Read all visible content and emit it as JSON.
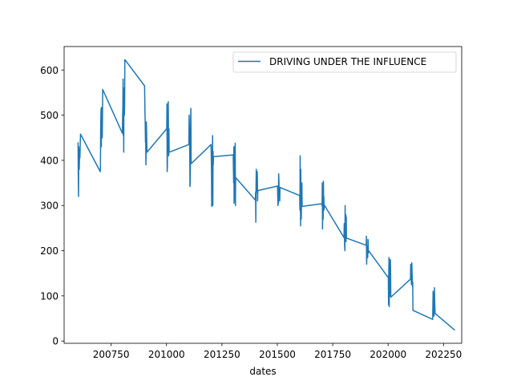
{
  "chart_data": {
    "type": "line",
    "title": "",
    "xlabel": "dates",
    "ylabel": "",
    "xlim": [
      200538,
      202332
    ],
    "ylim": [
      -5,
      652
    ],
    "x_ticks": [
      200750,
      201000,
      201250,
      201500,
      201750,
      202000,
      202250
    ],
    "y_ticks": [
      0,
      100,
      200,
      300,
      400,
      500,
      600
    ],
    "grid": false,
    "legend_position": "top-right",
    "series_color": "#1f77b4",
    "series": [
      {
        "name": "DRIVING UNDER THE INFLUENCE",
        "x": [
          200601,
          200602,
          200603,
          200604,
          200605,
          200606,
          200607,
          200608,
          200609,
          200610,
          200611,
          200612,
          200701,
          200702,
          200703,
          200704,
          200705,
          200706,
          200707,
          200708,
          200709,
          200710,
          200711,
          200712,
          200801,
          200802,
          200803,
          200804,
          200805,
          200806,
          200807,
          200808,
          200809,
          200810,
          200811,
          200812,
          200901,
          200902,
          200903,
          200904,
          200905,
          200906,
          200907,
          200908,
          200909,
          200910,
          200911,
          200912,
          201001,
          201002,
          201003,
          201004,
          201005,
          201006,
          201007,
          201008,
          201009,
          201010,
          201011,
          201012,
          201101,
          201102,
          201103,
          201104,
          201105,
          201106,
          201107,
          201108,
          201109,
          201110,
          201111,
          201112,
          201201,
          201202,
          201203,
          201204,
          201205,
          201206,
          201207,
          201208,
          201209,
          201210,
          201211,
          201212,
          201301,
          201302,
          201303,
          201304,
          201305,
          201306,
          201307,
          201308,
          201309,
          201310,
          201311,
          201312,
          201401,
          201402,
          201403,
          201404,
          201405,
          201406,
          201407,
          201408,
          201409,
          201410,
          201411,
          201412,
          201501,
          201502,
          201503,
          201504,
          201505,
          201506,
          201507,
          201508,
          201509,
          201510,
          201511,
          201512,
          201601,
          201602,
          201603,
          201604,
          201605,
          201606,
          201607,
          201608,
          201609,
          201610,
          201611,
          201612,
          201701,
          201702,
          201703,
          201704,
          201705,
          201706,
          201707,
          201708,
          201709,
          201710,
          201711,
          201712,
          201801,
          201802,
          201803,
          201804,
          201805,
          201806,
          201807,
          201808,
          201809,
          201810,
          201811,
          201812,
          201901,
          201902,
          201903,
          201904,
          201905,
          201906,
          201907,
          201908,
          201909,
          201910,
          201911,
          201912,
          202001,
          202002,
          202003,
          202004,
          202005,
          202006,
          202007,
          202008,
          202009,
          202010,
          202011,
          202012,
          202101,
          202102,
          202103,
          202104,
          202105,
          202106,
          202107,
          202108,
          202109,
          202110,
          202111,
          202112,
          202201,
          202202,
          202203,
          202204,
          202205,
          202206,
          202207,
          202208,
          202209,
          202210,
          202211,
          202212,
          202301
        ],
        "y": [
          440,
          360,
          320,
          430,
          410,
          380,
          400,
          425,
          405,
          420,
          440,
          458,
          375,
          390,
          470,
          500,
          515,
          430,
          517,
          480,
          460,
          450,
          490,
          557,
          460,
          500,
          520,
          580,
          455,
          540,
          418,
          560,
          530,
          500,
          520,
          623,
          565,
          535,
          500,
          480,
          440,
          470,
          390,
          420,
          485,
          465,
          440,
          418,
          470,
          525,
          375,
          390,
          500,
          505,
          465,
          530,
          440,
          410,
          470,
          418,
          435,
          500,
          480,
          450,
          405,
          342,
          350,
          410,
          490,
          515,
          400,
          393,
          435,
          410,
          380,
          298,
          400,
          420,
          410,
          455,
          300,
          420,
          390,
          408,
          412,
          380,
          350,
          430,
          305,
          320,
          380,
          340,
          420,
          438,
          300,
          362,
          312,
          330,
          263,
          340,
          380,
          360,
          330,
          350,
          375,
          360,
          310,
          333,
          343,
          320,
          300,
          330,
          305,
          370,
          360,
          340,
          320,
          330,
          310,
          340,
          322,
          290,
          410,
          330,
          255,
          380,
          305,
          270,
          300,
          330,
          350,
          298,
          304,
          300,
          350,
          248,
          285,
          330,
          270,
          354,
          305,
          320,
          290,
          301,
          229,
          260,
          230,
          210,
          200,
          300,
          230,
          250,
          280,
          220,
          275,
          228,
          212,
          232,
          170,
          185,
          210,
          190,
          200,
          185,
          225,
          220,
          195,
          200,
          140,
          80,
          160,
          185,
          76,
          180,
          170,
          120,
          100,
          180,
          160,
          97,
          137,
          170,
          140,
          160,
          125,
          130,
          173,
          150,
          140,
          120,
          130,
          68,
          48,
          80,
          110,
          90,
          60,
          70,
          55,
          80,
          118,
          90,
          75,
          61,
          24
        ]
      }
    ]
  }
}
